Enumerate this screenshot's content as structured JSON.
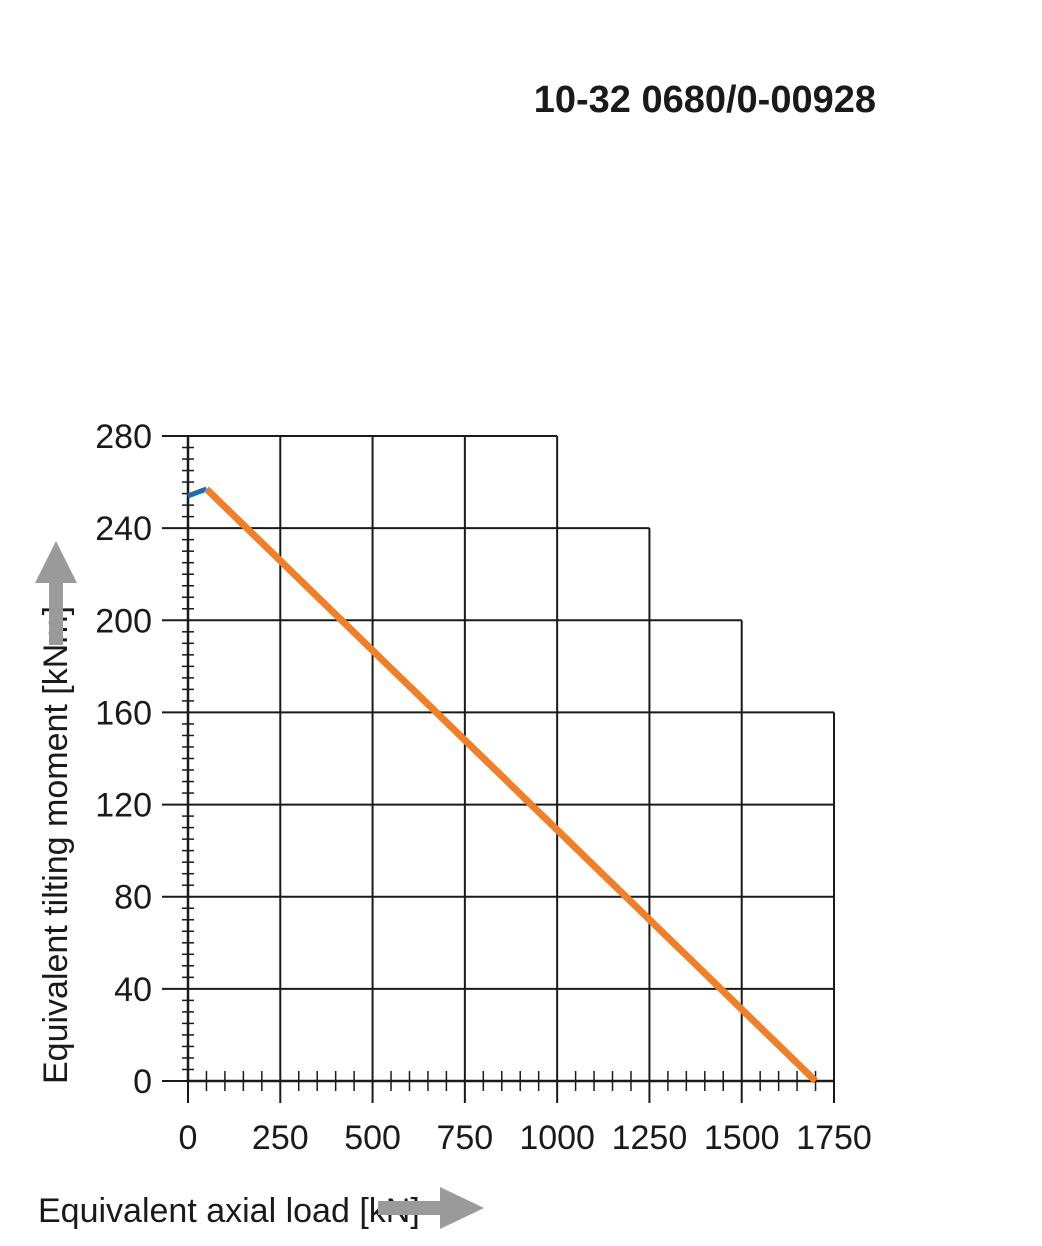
{
  "chart_data": {
    "type": "line",
    "title": "10-32 0680/0-00928",
    "xlabel": "Equivalent axial load [kN]",
    "ylabel": "Equivalent tilting moment [kNm]",
    "xlim": [
      0,
      1750
    ],
    "ylim": [
      0,
      280
    ],
    "x_ticks": [
      "0",
      "250",
      "500",
      "750",
      "1000",
      "1250",
      "1500",
      "1750"
    ],
    "y_ticks": [
      "0",
      "40",
      "80",
      "120",
      "160",
      "200",
      "240",
      "280"
    ],
    "grid": true,
    "grid_envelope": [
      {
        "x_max": 1000,
        "y_max": 280
      },
      {
        "x_max": 1250,
        "y_max": 240
      },
      {
        "x_max": 1500,
        "y_max": 200
      },
      {
        "x_max": 1750,
        "y_max": 160
      }
    ],
    "series": [
      {
        "color": "#1f6bb5",
        "x": [
          0,
          50
        ],
        "y": [
          254,
          257
        ]
      },
      {
        "color": "#f07f2a",
        "x": [
          50,
          1700
        ],
        "y": [
          257,
          0
        ]
      }
    ],
    "arrow_color": "#9a9a9a"
  }
}
